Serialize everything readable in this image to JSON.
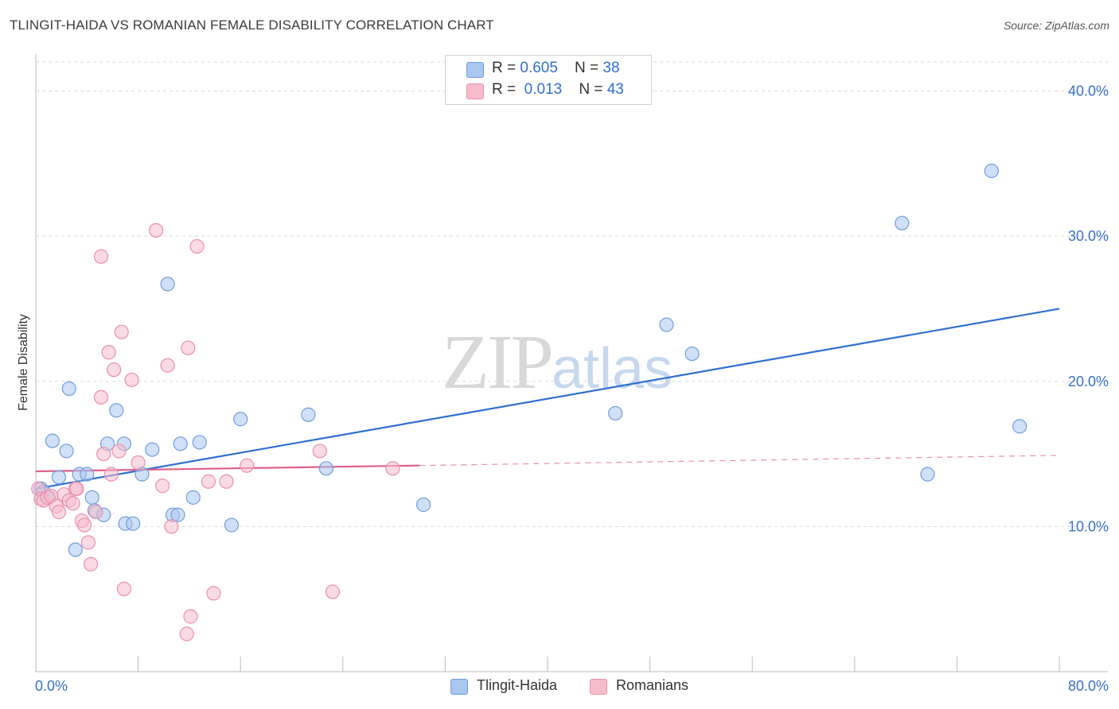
{
  "header": {
    "title": "TLINGIT-HAIDA VS ROMANIAN FEMALE DISABILITY CORRELATION CHART",
    "source": "Source: ZipAtlas.com"
  },
  "watermark": {
    "zip": "ZIP",
    "atlas": "atlas"
  },
  "legend": {
    "series1": {
      "r_label": "R = ",
      "r_value": "0.605",
      "n_label": "N = ",
      "n_value": "38"
    },
    "series2": {
      "r_label": "R = ",
      "r_value": "0.013",
      "n_label": "N = ",
      "n_value": "43"
    }
  },
  "bottom_legend": {
    "series1": "Tlingit-Haida",
    "series2": "Romanians"
  },
  "colors": {
    "blue_fill": "#a9c6ee",
    "blue_stroke": "#6f9fdc",
    "blue_line": "#2f6fd0",
    "pink_fill": "#f6bccd",
    "pink_stroke": "#ec8fab",
    "pink_line": "#e0608a",
    "grid": "#d9d9d9",
    "tick_text": "#3a6fc7"
  },
  "chart_data": {
    "type": "scatter",
    "title": "TLINGIT-HAIDA VS ROMANIAN FEMALE DISABILITY CORRELATION CHART",
    "xlabel": "",
    "ylabel": "Female Disability",
    "xlim": [
      0,
      80
    ],
    "ylim": [
      0,
      42
    ],
    "x_tick_labels": [
      "0.0%",
      "80.0%"
    ],
    "y_ticks": [
      10,
      20,
      30,
      40
    ],
    "y_tick_labels": [
      "10.0%",
      "20.0%",
      "30.0%",
      "40.0%"
    ],
    "grid": "horizontal dashed",
    "legend_position": "top-center",
    "series": [
      {
        "name": "Tlingit-Haida",
        "r": 0.605,
        "n": 38,
        "points": [
          [
            0.4,
            12.6
          ],
          [
            0.6,
            12.4
          ],
          [
            1.0,
            12.0
          ],
          [
            1.3,
            15.9
          ],
          [
            1.8,
            13.4
          ],
          [
            2.4,
            15.2
          ],
          [
            2.6,
            19.5
          ],
          [
            3.1,
            8.4
          ],
          [
            3.4,
            13.6
          ],
          [
            4.0,
            13.6
          ],
          [
            4.4,
            12.0
          ],
          [
            4.6,
            11.1
          ],
          [
            5.3,
            10.8
          ],
          [
            5.6,
            15.7
          ],
          [
            6.3,
            18.0
          ],
          [
            6.9,
            15.7
          ],
          [
            7.0,
            10.2
          ],
          [
            7.6,
            10.2
          ],
          [
            8.3,
            13.6
          ],
          [
            9.1,
            15.3
          ],
          [
            10.3,
            26.7
          ],
          [
            10.7,
            10.8
          ],
          [
            11.1,
            10.8
          ],
          [
            11.3,
            15.7
          ],
          [
            12.3,
            12.0
          ],
          [
            12.8,
            15.8
          ],
          [
            15.3,
            10.1
          ],
          [
            16.0,
            17.4
          ],
          [
            21.3,
            17.7
          ],
          [
            22.7,
            14.0
          ],
          [
            30.3,
            11.5
          ],
          [
            45.3,
            17.8
          ],
          [
            49.3,
            23.9
          ],
          [
            51.3,
            21.9
          ],
          [
            67.7,
            30.9
          ],
          [
            69.7,
            13.6
          ],
          [
            74.7,
            34.5
          ],
          [
            76.9,
            16.9
          ]
        ],
        "trend": {
          "x": [
            0,
            80
          ],
          "y": [
            12.6,
            25.0
          ]
        }
      },
      {
        "name": "Romanians",
        "r": 0.013,
        "n": 43,
        "points": [
          [
            0.2,
            12.6
          ],
          [
            0.4,
            11.9
          ],
          [
            0.6,
            11.8
          ],
          [
            0.9,
            12.0
          ],
          [
            1.2,
            12.1
          ],
          [
            1.6,
            11.4
          ],
          [
            1.8,
            11.0
          ],
          [
            2.2,
            12.2
          ],
          [
            2.6,
            11.8
          ],
          [
            2.9,
            11.6
          ],
          [
            3.1,
            12.6
          ],
          [
            3.2,
            12.6
          ],
          [
            3.6,
            10.4
          ],
          [
            3.8,
            10.1
          ],
          [
            4.1,
            8.9
          ],
          [
            4.3,
            7.4
          ],
          [
            4.7,
            11.0
          ],
          [
            5.1,
            28.6
          ],
          [
            5.1,
            18.9
          ],
          [
            5.3,
            15.0
          ],
          [
            5.7,
            22.0
          ],
          [
            5.9,
            13.6
          ],
          [
            6.1,
            20.8
          ],
          [
            6.5,
            15.2
          ],
          [
            6.7,
            23.4
          ],
          [
            6.9,
            5.7
          ],
          [
            7.5,
            20.1
          ],
          [
            8.0,
            14.4
          ],
          [
            9.4,
            30.4
          ],
          [
            9.9,
            12.8
          ],
          [
            10.3,
            21.1
          ],
          [
            10.6,
            10.0
          ],
          [
            11.8,
            2.6
          ],
          [
            11.9,
            22.3
          ],
          [
            12.1,
            3.8
          ],
          [
            12.6,
            29.3
          ],
          [
            13.5,
            13.1
          ],
          [
            13.9,
            5.4
          ],
          [
            14.9,
            13.1
          ],
          [
            16.5,
            14.2
          ],
          [
            22.2,
            15.2
          ],
          [
            23.2,
            5.5
          ],
          [
            27.9,
            14.0
          ]
        ],
        "trend": {
          "x": [
            0,
            30
          ],
          "y": [
            13.8,
            14.2
          ]
        },
        "trend_extension": {
          "x": [
            30,
            80
          ],
          "y": [
            14.2,
            14.9
          ]
        }
      }
    ]
  }
}
